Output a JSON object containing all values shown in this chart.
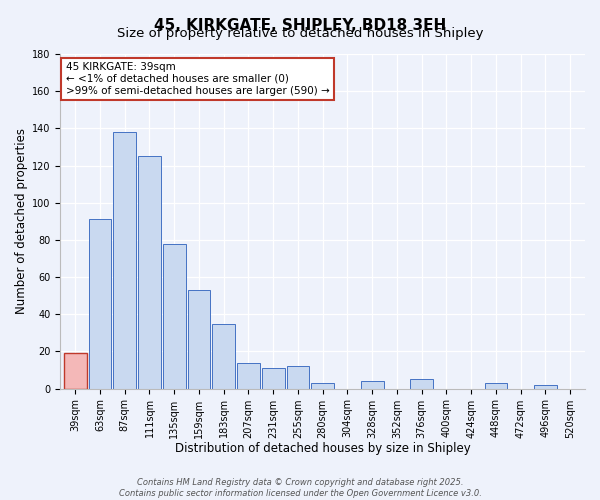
{
  "title": "45, KIRKGATE, SHIPLEY, BD18 3EH",
  "subtitle": "Size of property relative to detached houses in Shipley",
  "xlabel": "Distribution of detached houses by size in Shipley",
  "ylabel": "Number of detached properties",
  "categories": [
    "39sqm",
    "63sqm",
    "87sqm",
    "111sqm",
    "135sqm",
    "159sqm",
    "183sqm",
    "207sqm",
    "231sqm",
    "255sqm",
    "280sqm",
    "304sqm",
    "328sqm",
    "352sqm",
    "376sqm",
    "400sqm",
    "424sqm",
    "448sqm",
    "472sqm",
    "496sqm",
    "520sqm"
  ],
  "values": [
    19,
    91,
    138,
    125,
    78,
    53,
    35,
    14,
    11,
    12,
    3,
    0,
    4,
    0,
    5,
    0,
    0,
    3,
    0,
    2,
    0
  ],
  "bar_color": "#c9d9f0",
  "bar_edge_color": "#4472c4",
  "highlight_bar_index": 0,
  "highlight_bar_color": "#f4b8b8",
  "highlight_bar_edge_color": "#c0392b",
  "ylim": [
    0,
    180
  ],
  "yticks": [
    0,
    20,
    40,
    60,
    80,
    100,
    120,
    140,
    160,
    180
  ],
  "annotation_title": "45 KIRKGATE: 39sqm",
  "annotation_line1": "← <1% of detached houses are smaller (0)",
  "annotation_line2": ">99% of semi-detached houses are larger (590) →",
  "annotation_box_edge": "#c0392b",
  "footnote1": "Contains HM Land Registry data © Crown copyright and database right 2025.",
  "footnote2": "Contains public sector information licensed under the Open Government Licence v3.0.",
  "background_color": "#eef2fb",
  "grid_color": "#ffffff",
  "title_fontsize": 11,
  "subtitle_fontsize": 9.5,
  "axis_label_fontsize": 8.5,
  "tick_fontsize": 7,
  "annotation_fontsize": 7.5,
  "footnote_fontsize": 6
}
